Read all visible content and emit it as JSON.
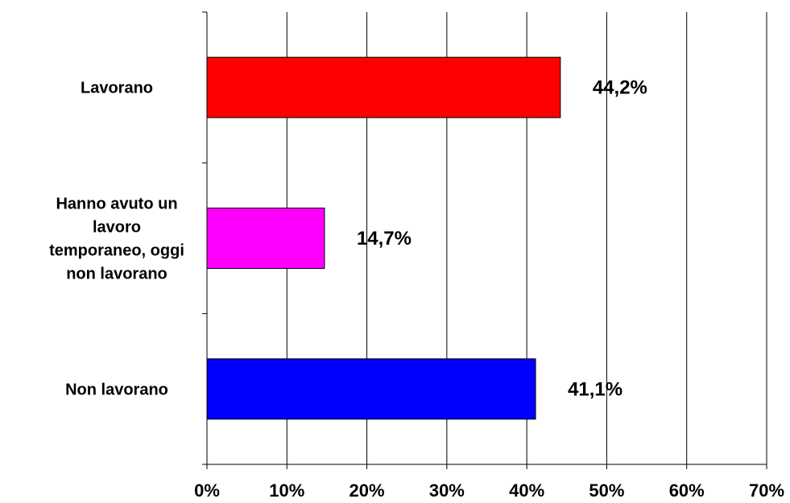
{
  "chart_data": {
    "type": "bar",
    "orientation": "horizontal",
    "categories": [
      "Lavorano",
      "Hanno avuto un lavoro temporaneo, oggi non lavorano",
      "Non lavorano"
    ],
    "category_label_lines": [
      [
        "Lavorano"
      ],
      [
        "Hanno avuto un",
        "lavoro",
        "temporaneo, oggi",
        "non lavorano"
      ],
      [
        "Non lavorano"
      ]
    ],
    "values": [
      44.2,
      14.7,
      41.1
    ],
    "data_labels": [
      "44,2%",
      "14,7%",
      "41,1%"
    ],
    "colors": [
      "#ff0000",
      "#ff00ff",
      "#0000ff"
    ],
    "xlim": [
      0,
      70
    ],
    "x_ticks": [
      0,
      10,
      20,
      30,
      40,
      50,
      60,
      70
    ],
    "x_tick_labels": [
      "0%",
      "10%",
      "20%",
      "30%",
      "40%",
      "50%",
      "60%",
      "70%"
    ],
    "title": "",
    "xlabel": "",
    "ylabel": "",
    "grid": "vertical",
    "legend": "none"
  }
}
